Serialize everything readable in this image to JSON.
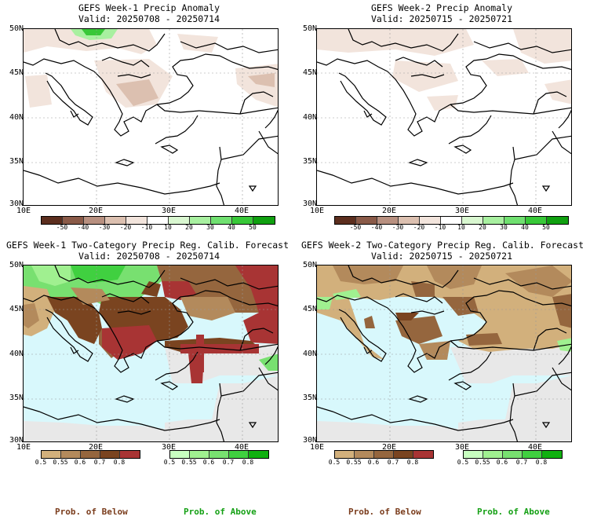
{
  "panels": [
    {
      "title": "GEFS Week-1 Precip Anomaly",
      "valid": "Valid: 20250708 - 20250714",
      "lat_labels": [
        "50N",
        "45N",
        "40N",
        "35N",
        "30N"
      ],
      "lon_labels": [
        "10E",
        "20E",
        "30E",
        "40E"
      ],
      "colorbar_ticks": [
        "-50",
        "-40",
        "-30",
        "-20",
        "-10",
        "10",
        "20",
        "30",
        "40",
        "50"
      ]
    },
    {
      "title": "GEFS Week-2 Precip Anomaly",
      "valid": "Valid: 20250715 - 20250721",
      "lat_labels": [
        "50N",
        "45N",
        "40N",
        "35N",
        "30N"
      ],
      "lon_labels": [
        "10E",
        "20E",
        "30E",
        "40E"
      ],
      "colorbar_ticks": [
        "-50",
        "-40",
        "-30",
        "-20",
        "-10",
        "10",
        "20",
        "30",
        "40",
        "50"
      ]
    },
    {
      "title": "GEFS Week-1 Two-Category Precip Reg. Calib. Forecast",
      "valid": "Valid: 20250708 - 20250714",
      "lat_labels": [
        "50N",
        "45N",
        "40N",
        "35N",
        "30N"
      ],
      "lon_labels": [
        "10E",
        "20E",
        "30E",
        "40E"
      ],
      "below_ticks": [
        "0.5",
        "0.55",
        "0.6",
        "0.7",
        "0.8"
      ],
      "above_ticks": [
        "0.5",
        "0.55",
        "0.6",
        "0.7",
        "0.8"
      ]
    },
    {
      "title": "GEFS Week-2 Two-Category Precip Reg. Calib. Forecast",
      "valid": "Valid: 20250715 - 20250721",
      "lat_labels": [
        "50N",
        "45N",
        "40N",
        "35N",
        "30N"
      ],
      "lon_labels": [
        "10E",
        "20E",
        "30E",
        "40E"
      ],
      "below_ticks": [
        "0.5",
        "0.55",
        "0.6",
        "0.7",
        "0.8"
      ],
      "above_ticks": [
        "0.5",
        "0.55",
        "0.6",
        "0.7",
        "0.8"
      ]
    }
  ],
  "legend": {
    "below_label": "Prob. of Below",
    "above_label": "Prob. of Above"
  },
  "colors": {
    "anomaly_scale": [
      "#5c2e1e",
      "#8a5a48",
      "#b89080",
      "#dcc0b0",
      "#f2e4dc",
      "#ffffff",
      "#d9f7d0",
      "#a8f0a0",
      "#70e070",
      "#38c838",
      "#10a010"
    ],
    "below_scale": [
      "#d2b07c",
      "#b38a5c",
      "#95663e",
      "#7a4420",
      "#a83434"
    ],
    "above_scale": [
      "#c8ffc0",
      "#a0f090",
      "#78e070",
      "#40d040",
      "#10b010"
    ],
    "water": "#d8f8fc",
    "no_forecast": "#e8e8e8",
    "below_label_color": "#7a3c1c",
    "above_label_color": "#14a014"
  }
}
